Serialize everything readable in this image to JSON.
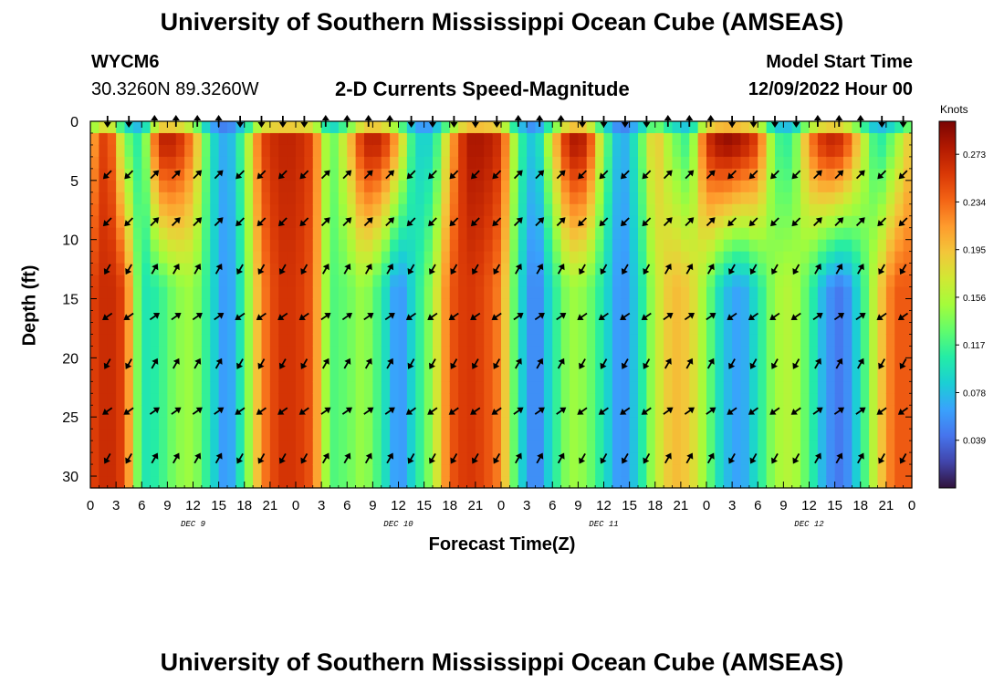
{
  "header": {
    "title": "University of Southern Mississippi Ocean Cube (AMSEAS)",
    "station_id": "WYCM6",
    "station_coords": "30.3260N  89.3260W",
    "model_start_label": "Model Start Time",
    "model_start_value": "12/09/2022 Hour 00"
  },
  "footer": {
    "title": "University of Southern Mississippi Ocean Cube (AMSEAS)"
  },
  "chart_data": {
    "type": "heatmap",
    "title": "2-D Currents Speed-Magnitude",
    "xlabel": "Forecast Time(Z)",
    "ylabel": "Depth (ft)",
    "x_ticks": [
      "0",
      "3",
      "6",
      "9",
      "12",
      "15",
      "18",
      "21",
      "0",
      "3",
      "6",
      "9",
      "12",
      "15",
      "18",
      "21",
      "0",
      "3",
      "6",
      "9",
      "12",
      "15",
      "18",
      "21",
      "0",
      "3",
      "6",
      "9",
      "12",
      "15",
      "18",
      "21",
      "0"
    ],
    "x_range_hours": [
      0,
      96
    ],
    "day_labels": [
      {
        "label": "DEC 9",
        "hour": 12
      },
      {
        "label": "DEC 10",
        "hour": 36
      },
      {
        "label": "DEC 11",
        "hour": 60
      },
      {
        "label": "DEC 12",
        "hour": 84
      }
    ],
    "y_ticks": [
      0,
      5,
      10,
      15,
      20,
      25,
      30
    ],
    "y_range_ft": [
      0,
      31
    ],
    "y_inverted": true,
    "colorbar": {
      "label": "Knots",
      "range": [
        0.0,
        0.3
      ],
      "ticks": [
        "0.273",
        "0.234",
        "0.195",
        "0.156",
        "0.117",
        "0.078",
        "0.039"
      ],
      "colormap": [
        "#30123b",
        "#4145ab",
        "#4675ed",
        "#39a2fc",
        "#1bcfd4",
        "#24eca6",
        "#61fc6c",
        "#a4fc3b",
        "#d1e834",
        "#f3c63a",
        "#fe9b2d",
        "#f36315",
        "#d93806",
        "#b11901",
        "#7a0403"
      ]
    },
    "grid": false,
    "speed_profile": {
      "hours": [
        0,
        2,
        4,
        6,
        8,
        10,
        12,
        14,
        16,
        18,
        20,
        22,
        24,
        26,
        28,
        30,
        32,
        34,
        36,
        38,
        40,
        42,
        44,
        46,
        48,
        50,
        52,
        54,
        56,
        58,
        60,
        62,
        64,
        66,
        68,
        70,
        72,
        74,
        76,
        78,
        80,
        82,
        84,
        86,
        88,
        90,
        92,
        94,
        96
      ],
      "surface_knots": [
        0.2,
        0.27,
        0.14,
        0.1,
        0.27,
        0.27,
        0.22,
        0.1,
        0.06,
        0.13,
        0.25,
        0.27,
        0.27,
        0.25,
        0.12,
        0.18,
        0.27,
        0.27,
        0.2,
        0.09,
        0.09,
        0.2,
        0.28,
        0.28,
        0.26,
        0.12,
        0.07,
        0.18,
        0.28,
        0.27,
        0.14,
        0.06,
        0.11,
        0.2,
        0.14,
        0.11,
        0.26,
        0.29,
        0.28,
        0.25,
        0.12,
        0.11,
        0.22,
        0.27,
        0.26,
        0.18,
        0.1,
        0.14,
        0.2
      ],
      "deep_knots": [
        0.25,
        0.27,
        0.25,
        0.1,
        0.11,
        0.14,
        0.15,
        0.1,
        0.05,
        0.12,
        0.22,
        0.26,
        0.26,
        0.24,
        0.12,
        0.13,
        0.15,
        0.11,
        0.05,
        0.1,
        0.15,
        0.24,
        0.26,
        0.25,
        0.22,
        0.1,
        0.04,
        0.1,
        0.15,
        0.14,
        0.1,
        0.05,
        0.09,
        0.16,
        0.2,
        0.19,
        0.14,
        0.08,
        0.06,
        0.1,
        0.15,
        0.16,
        0.12,
        0.06,
        0.04,
        0.1,
        0.18,
        0.24,
        0.24
      ]
    },
    "arrow_depths_ft": [
      0,
      4.5,
      8.5,
      12.5,
      16.5,
      20.5,
      24.5,
      28.5
    ],
    "arrow_hours": [
      2,
      4.5,
      7.5,
      10,
      12.5,
      15,
      17.5,
      20,
      22.5,
      25,
      27.5,
      30,
      32.5,
      35,
      37.5,
      40,
      42.5,
      45,
      47.5,
      50,
      52.5,
      55,
      57.5,
      60,
      62.5,
      65,
      67.5,
      70,
      72.5,
      75,
      77.5,
      80,
      82.5,
      85,
      87.5,
      90,
      92.5,
      95
    ],
    "arrow_directions_deg": [
      225,
      225,
      45,
      45,
      45,
      45,
      225,
      225,
      225,
      225,
      45,
      45,
      45,
      45,
      225,
      225,
      225,
      225,
      225,
      45,
      45,
      45,
      225,
      225,
      225,
      225,
      45,
      45,
      45,
      225,
      225,
      225,
      225,
      45,
      45,
      45,
      225,
      225
    ]
  }
}
